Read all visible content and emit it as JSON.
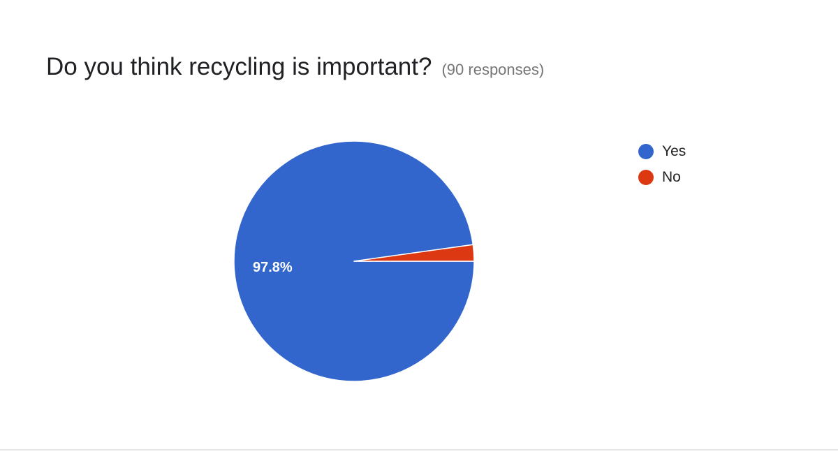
{
  "header": {
    "title": "Do you think recycling is important?",
    "response_count": "(90 responses)"
  },
  "chart_data": {
    "type": "pie",
    "title": "Do you think recycling is important?",
    "total_responses": 90,
    "slices": [
      {
        "label": "Yes",
        "value": 97.8,
        "display_label": "97.8%",
        "color": "#3366CC"
      },
      {
        "label": "No",
        "value": 2.2,
        "display_label": "",
        "color": "#DC3912"
      }
    ],
    "legend_position": "right"
  }
}
